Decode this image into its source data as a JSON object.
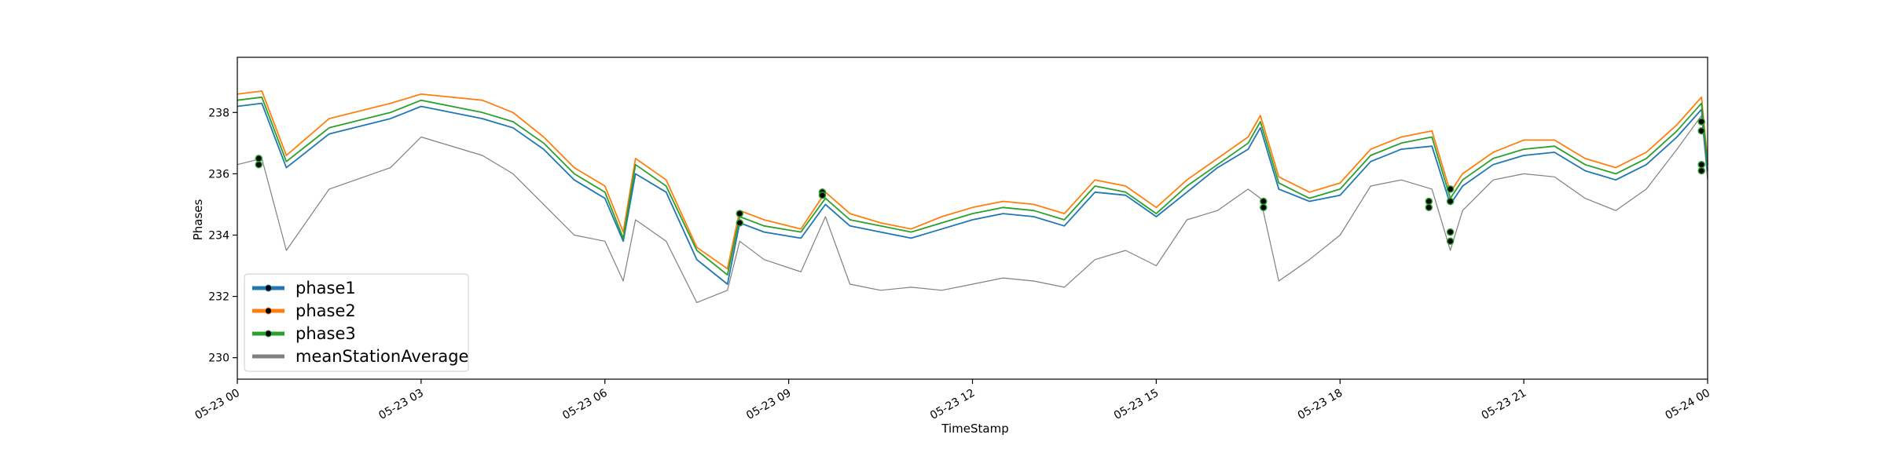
{
  "chart_data": {
    "type": "line",
    "title": "",
    "xlabel": "TimeStamp",
    "ylabel": "Phases",
    "x_ticks": [
      "05-23 00",
      "05-23 03",
      "05-23 06",
      "05-23 09",
      "05-23 12",
      "05-23 15",
      "05-23 18",
      "05-23 21",
      "05-24 00"
    ],
    "x_range_hours": [
      0,
      24
    ],
    "y_ticks": [
      230,
      232,
      234,
      236,
      238
    ],
    "ylim": [
      229.3,
      239.8
    ],
    "grid": false,
    "legend_position": "lower-left",
    "x_hours": [
      0,
      0.4,
      0.8,
      1.5,
      2.5,
      3.0,
      4.0,
      4.5,
      5.0,
      5.5,
      6.0,
      6.3,
      6.5,
      7.0,
      7.5,
      8.0,
      8.2,
      8.6,
      9.2,
      9.6,
      10.0,
      10.5,
      11.0,
      11.5,
      12.0,
      12.5,
      13.0,
      13.5,
      14.0,
      14.5,
      15.0,
      15.5,
      16.0,
      16.5,
      16.7,
      17.0,
      17.5,
      18.0,
      18.5,
      19.0,
      19.5,
      19.8,
      20.0,
      20.5,
      21.0,
      21.5,
      22.0,
      22.5,
      23.0,
      23.5,
      23.9,
      24.0
    ],
    "series": [
      {
        "name": "phase1",
        "color": "#1f77b4",
        "values": [
          238.2,
          238.3,
          236.2,
          237.3,
          237.8,
          238.2,
          237.8,
          237.5,
          236.8,
          235.8,
          235.2,
          233.8,
          236.0,
          235.4,
          233.2,
          232.4,
          234.4,
          234.1,
          233.9,
          235.0,
          234.3,
          234.1,
          233.9,
          234.2,
          234.5,
          234.7,
          234.6,
          234.3,
          235.4,
          235.3,
          234.6,
          235.4,
          236.2,
          236.8,
          237.5,
          235.5,
          235.1,
          235.3,
          236.4,
          236.8,
          236.9,
          235.0,
          235.6,
          236.3,
          236.6,
          236.7,
          236.1,
          235.8,
          236.3,
          237.2,
          238.1,
          236.1
        ]
      },
      {
        "name": "phase2",
        "color": "#ff7f0e",
        "values": [
          238.6,
          238.7,
          236.6,
          237.8,
          238.3,
          238.6,
          238.4,
          238.0,
          237.2,
          236.2,
          235.6,
          234.1,
          236.5,
          235.8,
          233.6,
          232.9,
          234.8,
          234.5,
          234.2,
          235.4,
          234.7,
          234.4,
          234.2,
          234.6,
          234.9,
          235.1,
          235.0,
          234.7,
          235.8,
          235.6,
          234.9,
          235.8,
          236.5,
          237.2,
          237.9,
          235.9,
          235.4,
          235.7,
          236.8,
          237.2,
          237.4,
          235.4,
          236.0,
          236.7,
          237.1,
          237.1,
          236.5,
          236.2,
          236.7,
          237.6,
          238.5,
          236.4
        ]
      },
      {
        "name": "phase3",
        "color": "#2ca02c",
        "values": [
          238.4,
          238.5,
          236.4,
          237.5,
          238.0,
          238.4,
          238.0,
          237.7,
          237.0,
          236.0,
          235.4,
          233.9,
          236.3,
          235.6,
          233.5,
          232.7,
          234.6,
          234.3,
          234.1,
          235.2,
          234.5,
          234.3,
          234.1,
          234.4,
          234.7,
          234.9,
          234.8,
          234.5,
          235.6,
          235.4,
          234.7,
          235.6,
          236.3,
          237.0,
          237.7,
          235.7,
          235.2,
          235.5,
          236.6,
          237.0,
          237.2,
          235.2,
          235.8,
          236.5,
          236.8,
          236.9,
          236.3,
          236.0,
          236.5,
          237.4,
          238.3,
          236.3
        ]
      },
      {
        "name": "meanStationAverage",
        "color": "#808080",
        "values": [
          236.3,
          236.5,
          233.5,
          235.5,
          236.2,
          237.2,
          236.6,
          236.0,
          235.0,
          234.0,
          233.8,
          232.5,
          234.5,
          233.8,
          231.8,
          232.2,
          233.8,
          233.2,
          232.8,
          234.6,
          232.4,
          232.2,
          232.3,
          232.2,
          232.4,
          232.6,
          232.5,
          232.3,
          233.2,
          233.5,
          233.0,
          234.5,
          234.8,
          235.5,
          235.2,
          232.5,
          233.2,
          234.0,
          235.6,
          235.8,
          235.5,
          233.5,
          234.8,
          235.8,
          236.0,
          235.9,
          235.2,
          234.8,
          235.5,
          236.8,
          237.9,
          235.8
        ]
      }
    ],
    "markers": [
      {
        "x": 0.35,
        "y": [
          236.5,
          236.3
        ]
      },
      {
        "x": 8.2,
        "y": [
          234.7,
          234.4
        ]
      },
      {
        "x": 9.55,
        "y": [
          235.4,
          235.3
        ]
      },
      {
        "x": 16.75,
        "y": [
          235.1,
          234.9
        ]
      },
      {
        "x": 19.45,
        "y": [
          235.1,
          234.9
        ]
      },
      {
        "x": 19.8,
        "y": [
          235.5,
          235.1,
          234.1,
          233.8
        ]
      },
      {
        "x": 23.9,
        "y": [
          237.7,
          237.4,
          236.3,
          236.1
        ]
      }
    ]
  }
}
